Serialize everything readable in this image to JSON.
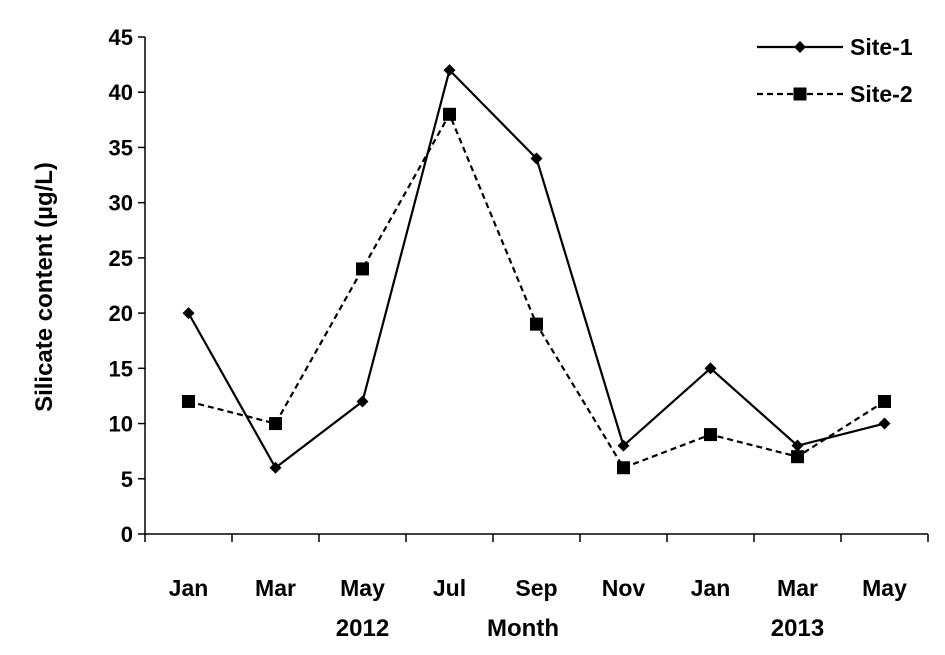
{
  "chart_data": {
    "type": "line",
    "title": "",
    "xlabel": "Month",
    "ylabel": "Silicate content (µg/L)",
    "ylim": [
      0,
      45
    ],
    "yticks": [
      0,
      5,
      10,
      15,
      20,
      25,
      30,
      35,
      40,
      45
    ],
    "categories": [
      "Jan",
      "Mar",
      "May",
      "Jul",
      "Sep",
      "Nov",
      "Jan",
      "Mar",
      "May"
    ],
    "year_labels": [
      {
        "text": "2012",
        "category_index": 2
      },
      {
        "text": "2013",
        "category_index": 7
      }
    ],
    "series": [
      {
        "name": "Site-1",
        "values": [
          20,
          6,
          12,
          42,
          34,
          8,
          15,
          8,
          10
        ],
        "line_style": "solid",
        "marker": "diamond",
        "color": "#000000"
      },
      {
        "name": "Site-2",
        "values": [
          12,
          10,
          24,
          38,
          19,
          6,
          9,
          7,
          12
        ],
        "line_style": "dashed",
        "marker": "square",
        "color": "#000000"
      }
    ],
    "grid": false,
    "legend_position": "top-right"
  }
}
